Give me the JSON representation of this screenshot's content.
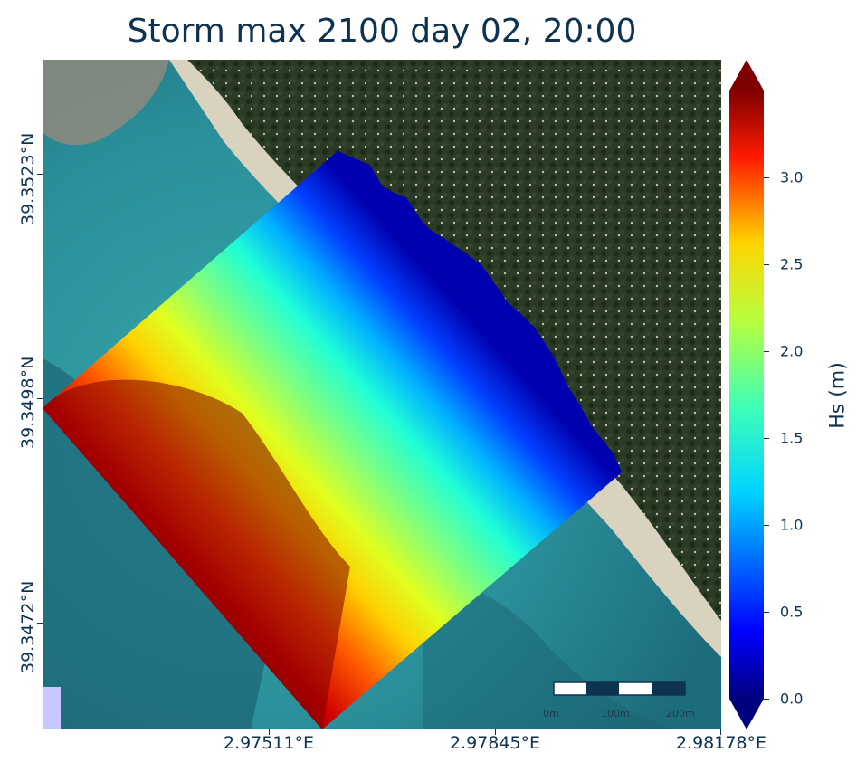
{
  "title": "Storm max 2100 day 02, 20:00",
  "map": {
    "basemap": "satellite-imagery",
    "latitude_labels": [
      "39.3523°N",
      "39.3498°N",
      "39.3472°N"
    ],
    "longitude_labels": [
      "2.97511°E",
      "2.97845°E",
      "2.98178°E"
    ],
    "scale_bar": {
      "labels": [
        "0m",
        "100m",
        "200m"
      ]
    }
  },
  "colorbar": {
    "title": "Hs (m)",
    "colormap": "jet",
    "range": [
      0.0,
      3.4
    ],
    "extend": "both",
    "tick_labels": [
      "0.0",
      "0.5",
      "1.0",
      "1.5",
      "2.0",
      "2.5",
      "3.0"
    ],
    "tick_values": [
      0.0,
      0.5,
      1.0,
      1.5,
      2.0,
      2.5,
      3.0
    ]
  },
  "overlay": {
    "variable": "Significant wave height (Hs)",
    "offshore_max": 3.4,
    "shoreline_min": 0.0
  },
  "colors": {
    "text": "#0e3350",
    "sea": "#2e9aa2",
    "land": "#24321f",
    "beach": "#d9d2bf"
  }
}
